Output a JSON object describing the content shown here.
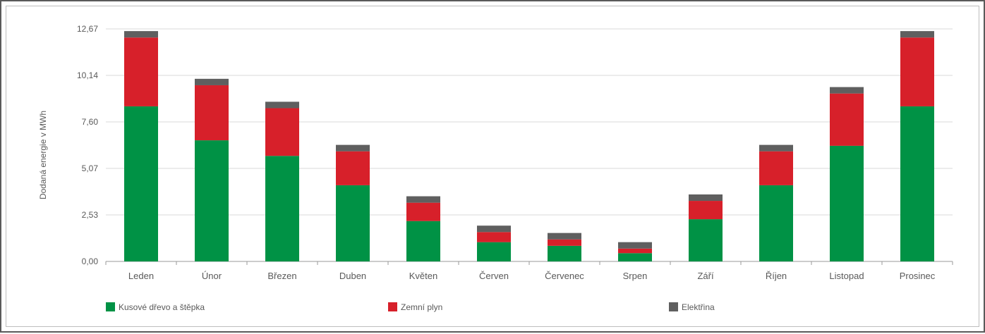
{
  "chart_data": {
    "type": "bar",
    "stacked": true,
    "title": "",
    "xlabel": "",
    "ylabel": "Dodaná energie v MWh",
    "ylim": [
      0,
      12.67
    ],
    "yticks": [
      "0,00",
      "2,53",
      "5,07",
      "7,60",
      "10,14",
      "12,67"
    ],
    "categories": [
      "Leden",
      "Únor",
      "Březen",
      "Duben",
      "Květen",
      "Červen",
      "Červenec",
      "Srpen",
      "Září",
      "Říjen",
      "Listopad",
      "Prosinec"
    ],
    "series": [
      {
        "name": "Kusové dřevo a štěpka",
        "color": "#009245",
        "values": [
          8.45,
          6.6,
          5.75,
          4.15,
          2.2,
          1.05,
          0.85,
          0.45,
          2.3,
          4.15,
          6.3,
          8.45
        ]
      },
      {
        "name": "Zemní plyn",
        "color": "#d7202a",
        "values": [
          3.75,
          3.0,
          2.6,
          1.85,
          1.0,
          0.55,
          0.35,
          0.25,
          1.0,
          1.85,
          2.85,
          3.75
        ]
      },
      {
        "name": "Elektřina",
        "color": "#5f5f5f",
        "values": [
          0.35,
          0.35,
          0.35,
          0.35,
          0.35,
          0.35,
          0.35,
          0.35,
          0.35,
          0.35,
          0.35,
          0.35
        ]
      }
    ],
    "grid": true,
    "legend": "bottom"
  }
}
